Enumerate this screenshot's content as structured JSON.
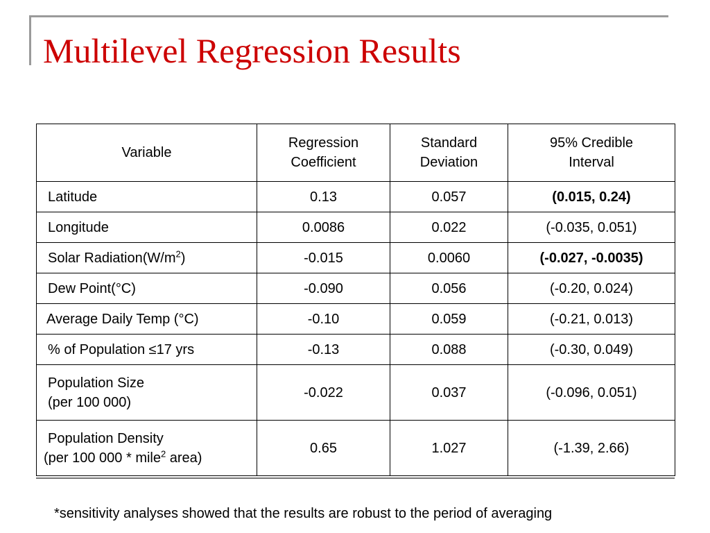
{
  "slide": {
    "title": "Multilevel Regression Results",
    "footnote": "*sensitivity analyses showed that the results are robust to the period of averaging"
  },
  "table": {
    "headers": {
      "variable": "Variable",
      "coef_line1": "Regression",
      "coef_line2": "Coefficient",
      "sd_line1": "Standard",
      "sd_line2": "Deviation",
      "ci_line1": "95% Credible",
      "ci_line2": "Interval"
    },
    "rows": [
      {
        "variable": "Latitude",
        "coef": "0.13",
        "sd": "0.057",
        "ci": "(0.015, 0.24)"
      },
      {
        "variable": "Longitude",
        "coef": "0.0086",
        "sd": "0.022",
        "ci": "(-0.035, 0.051)"
      },
      {
        "variable_pre": "Solar Radiation(W/m",
        "variable_sup": "2",
        "variable_post": ")",
        "coef": "-0.015",
        "sd": "0.0060",
        "ci": "(-0.027, -0.0035)"
      },
      {
        "variable": "Dew Point(°C)",
        "coef": "-0.090",
        "sd": "0.056",
        "ci": "(-0.20, 0.024)"
      },
      {
        "variable": "Average Daily Temp (°C)",
        "coef": "-0.10",
        "sd": "0.059",
        "ci": "(-0.21, 0.013)"
      },
      {
        "variable": "% of Population ≤17 yrs",
        "coef": "-0.13",
        "sd": "0.088",
        "ci": "(-0.30, 0.049)"
      },
      {
        "variable_line1": "Population Size",
        "variable_line2": "(per 100 000)",
        "coef": "-0.022",
        "sd": "0.037",
        "ci": "(-0.096, 0.051)"
      },
      {
        "variable_line1": "Population Density",
        "variable_line2_pre": "(per 100 000 * mile",
        "variable_line2_sup": "2",
        "variable_line2_post": " area)",
        "coef": "0.65",
        "sd": "1.027",
        "ci": "(-1.39, 2.66)"
      }
    ]
  }
}
